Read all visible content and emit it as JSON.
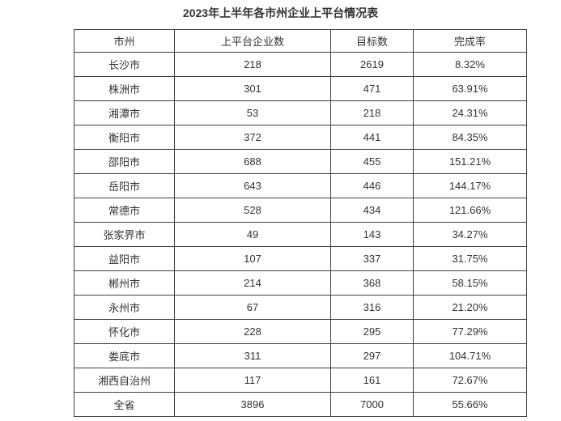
{
  "page_title": "2023年上半年各市州企业上平台情况表",
  "colors": {
    "background": "#ffffff",
    "border": "#3f3f3f",
    "text": "#333333"
  },
  "chart_data": {
    "type": "table",
    "title": "2023年上半年各市州企业上平台情况表",
    "columns": [
      "市州",
      "上平台企业数",
      "目标数",
      "完成率"
    ],
    "rows": [
      [
        "长沙市",
        "218",
        "2619",
        "8.32%"
      ],
      [
        "株洲市",
        "301",
        "471",
        "63.91%"
      ],
      [
        "湘潭市",
        "53",
        "218",
        "24.31%"
      ],
      [
        "衡阳市",
        "372",
        "441",
        "84.35%"
      ],
      [
        "邵阳市",
        "688",
        "455",
        "151.21%"
      ],
      [
        "岳阳市",
        "643",
        "446",
        "144.17%"
      ],
      [
        "常德市",
        "528",
        "434",
        "121.66%"
      ],
      [
        "张家界市",
        "49",
        "143",
        "34.27%"
      ],
      [
        "益阳市",
        "107",
        "337",
        "31.75%"
      ],
      [
        "郴州市",
        "214",
        "368",
        "58.15%"
      ],
      [
        "永州市",
        "67",
        "316",
        "21.20%"
      ],
      [
        "怀化市",
        "228",
        "295",
        "77.29%"
      ],
      [
        "娄底市",
        "311",
        "297",
        "104.71%"
      ],
      [
        "湘西自治州",
        "117",
        "161",
        "72.67%"
      ],
      [
        "全省",
        "3896",
        "7000",
        "55.66%"
      ]
    ],
    "layout_hints": {
      "header_row": true,
      "total_row_label": "全省",
      "cell_alignment": "center",
      "grid": "on"
    }
  }
}
